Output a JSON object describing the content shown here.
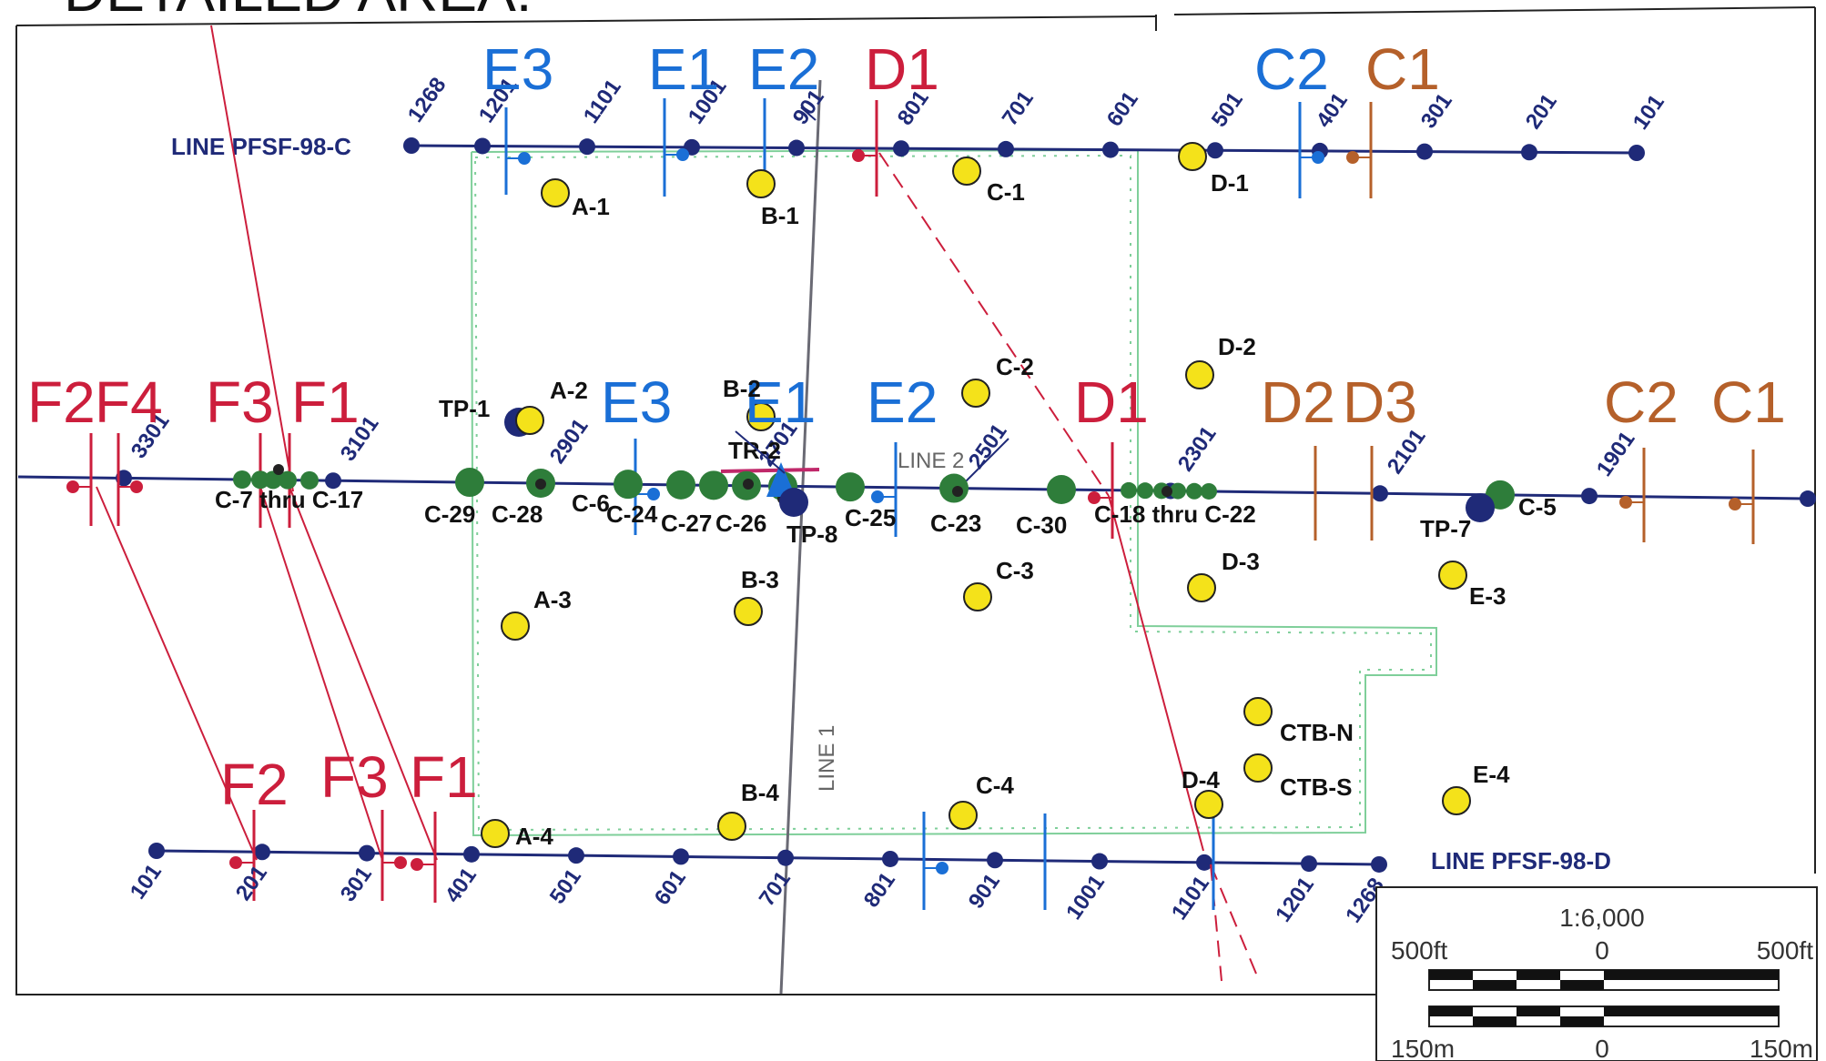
{
  "header": {
    "title": "DETAILED AREA:"
  },
  "lines": {
    "c": {
      "name": "LINE PFSF-98-C",
      "stations": [
        "1268",
        "1201",
        "1101",
        "1001",
        "901",
        "801",
        "701",
        "601",
        "501",
        "401",
        "301",
        "201",
        "101"
      ]
    },
    "d": {
      "name": "LINE PFSF-98-D",
      "stations": [
        "101",
        "201",
        "301",
        "401",
        "501",
        "601",
        "701",
        "801",
        "901",
        "1001",
        "1101",
        "1201",
        "1268"
      ]
    },
    "middle": {
      "stations": [
        "3301",
        "3101",
        "2901",
        "2701",
        "2501",
        "2301",
        "2101",
        "1901"
      ]
    },
    "line1": "LINE 1",
    "line2": "LINE 2"
  },
  "fault_labels": {
    "top": [
      "E3",
      "E1",
      "E2",
      "D1",
      "C2",
      "C1"
    ],
    "middle": [
      "F2",
      "F4",
      "F3",
      "F1",
      "E3",
      "E1",
      "E2",
      "D1",
      "D2",
      "D3",
      "C2",
      "C1"
    ],
    "bottom": [
      "F2",
      "F3",
      "F1"
    ]
  },
  "borings": [
    "A-1",
    "B-1",
    "C-1",
    "D-1",
    "A-2",
    "B-2",
    "C-2",
    "D-2",
    "A-3",
    "B-3",
    "C-3",
    "D-3",
    "E-3",
    "A-4",
    "B-4",
    "C-4",
    "D-4",
    "E-4",
    "CTB-N",
    "CTB-S"
  ],
  "test_pits": [
    "TP-1",
    "TR-2",
    "TP-8",
    "TP-7"
  ],
  "cpt_labels": [
    "C-7 thru C-17",
    "C-29",
    "C-28",
    "C-6",
    "C-24",
    "C-27",
    "C-26",
    "C-25",
    "C-23",
    "C-30",
    "C-18 thru C-22",
    "C-5"
  ],
  "colors": {
    "survey_line": "#1f2a78",
    "fault_red": "#cc1e3c",
    "fault_blue": "#1a6fd6",
    "fault_orange": "#b5602a",
    "boring_fill": "#f4e21a",
    "cpt_green": "#2e7d3a",
    "fence_green": "#7fcf9a",
    "line_gray": "#6a6a74"
  },
  "scale": {
    "ratio": "1:6,000",
    "ft_left": "500ft",
    "ft_mid": "0",
    "ft_right": "500ft",
    "m_left": "150m",
    "m_mid": "0",
    "m_right": "150m"
  }
}
